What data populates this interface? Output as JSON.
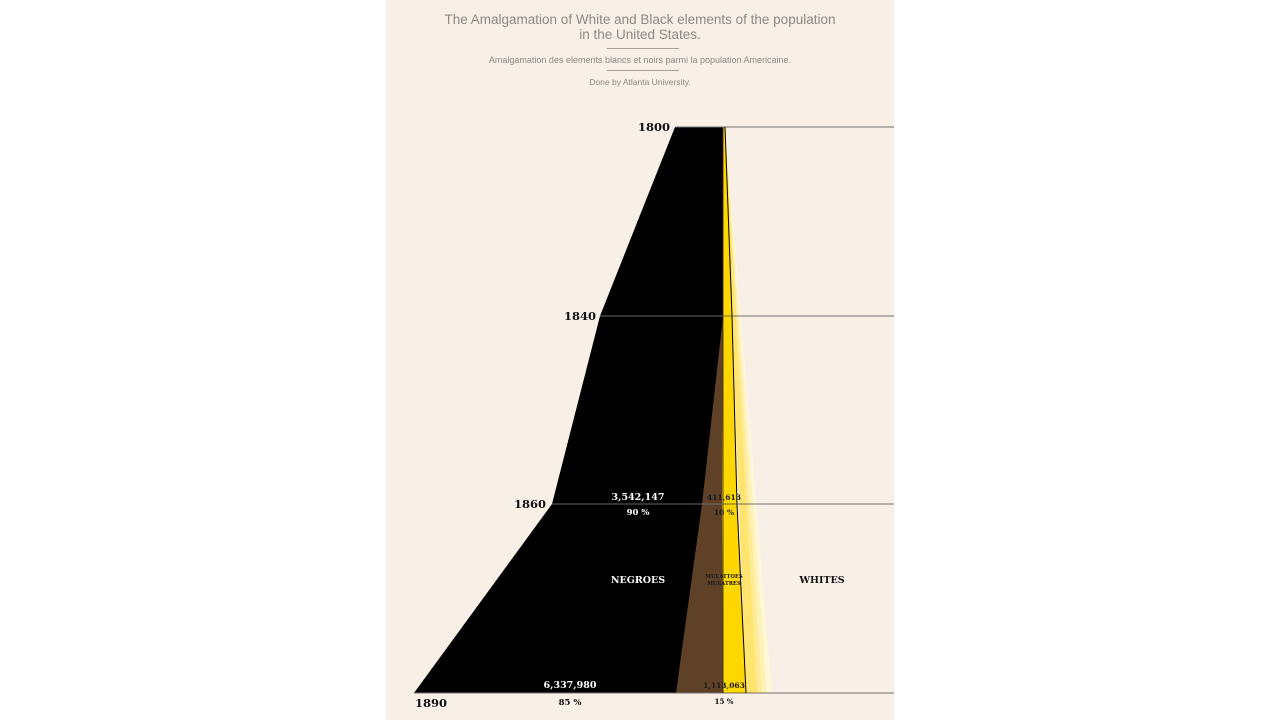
{
  "header": {
    "title_line1": "The Amalgamation of White and Black elements of the population",
    "title_line2": "in the United States.",
    "subtitle": "Amalgamation des elements blancs et noirs parmi la population Americaine.",
    "credit": "Done by Atlanta University."
  },
  "chart_data": {
    "type": "area",
    "orientation": "vertical-time",
    "years": [
      "1800",
      "1840",
      "1860",
      "1890"
    ],
    "series": [
      {
        "name": "NEGROES",
        "color": "#000000",
        "values": {
          "1860": "3,542,147",
          "1890": "6,337,980"
        },
        "percent": {
          "1860": "90 %",
          "1890": "85 %"
        }
      },
      {
        "name": "MULATTOES",
        "alt_name": "MULATRES",
        "color": "#ffd700",
        "values": {
          "1860": "411,613",
          "1890": "1,113,063"
        },
        "percent": {
          "1860": "10 %",
          "1890": "15 %"
        }
      },
      {
        "name": "WHITES",
        "color": "#f8efe6"
      }
    ],
    "colors": {
      "negroes": "#000000",
      "mulatto_brown": "#5e4126",
      "mulatto_yellow": "#ffd700",
      "rule": "#444444",
      "background": "#f8efe6"
    }
  }
}
